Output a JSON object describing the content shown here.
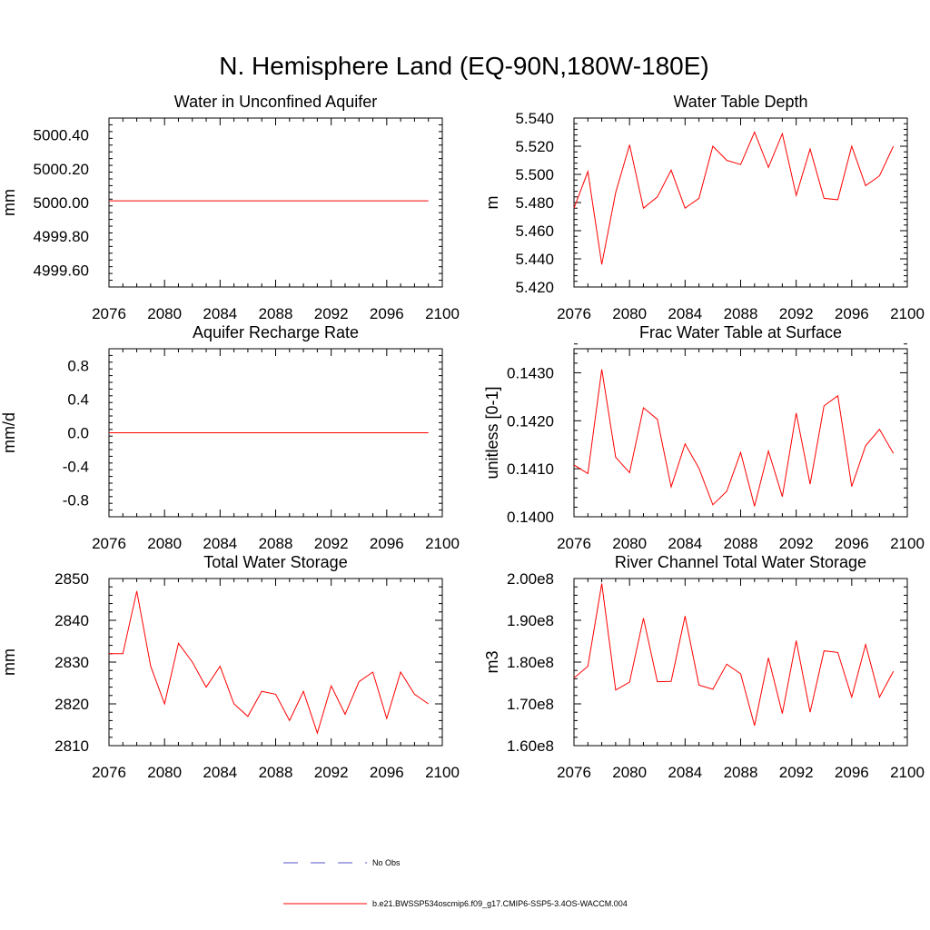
{
  "title": "N. Hemisphere Land (EQ-90N,180W-180E)",
  "colors": {
    "series": "#ff0000",
    "obs": "#5555cc",
    "axis": "#000000"
  },
  "legend": {
    "obs_label": "No Obs",
    "model_label": "b.e21.BWSSP534oscmip6.f09_g17.CMIP6-SSP5-3.4OS-WACCM.004"
  },
  "chart_data": [
    {
      "type": "line",
      "title": "Water in Unconfined Aquifer",
      "ylabel": "mm",
      "xlim": [
        2076,
        2100
      ],
      "ylim": [
        4999.5,
        5000.5
      ],
      "xticks": [
        2076,
        2080,
        2084,
        2088,
        2092,
        2096,
        2100
      ],
      "xtick_labels": [
        "2076",
        "2080",
        "2084",
        "2088",
        "2092",
        "2096",
        "2100"
      ],
      "yticks": [
        4999.6,
        4999.8,
        5000.0,
        5000.2,
        5000.4
      ],
      "ytick_labels": [
        "4999.60",
        "4999.80",
        "5000.00",
        "5000.20",
        "5000.40"
      ],
      "x": [
        2076,
        2077,
        2078,
        2079,
        2080,
        2081,
        2082,
        2083,
        2084,
        2085,
        2086,
        2087,
        2088,
        2089,
        2090,
        2091,
        2092,
        2093,
        2094,
        2095,
        2096,
        2097,
        2098,
        2099
      ],
      "values": [
        5000.01,
        5000.01,
        5000.01,
        5000.01,
        5000.01,
        5000.01,
        5000.01,
        5000.01,
        5000.01,
        5000.01,
        5000.01,
        5000.01,
        5000.01,
        5000.01,
        5000.01,
        5000.01,
        5000.01,
        5000.01,
        5000.01,
        5000.01,
        5000.01,
        5000.01,
        5000.01,
        5000.01
      ]
    },
    {
      "type": "line",
      "title": "Water Table Depth",
      "ylabel": "m",
      "xlim": [
        2076,
        2100
      ],
      "ylim": [
        5.42,
        5.54
      ],
      "xticks": [
        2076,
        2080,
        2084,
        2088,
        2092,
        2096,
        2100
      ],
      "xtick_labels": [
        "2076",
        "2080",
        "2084",
        "2088",
        "2092",
        "2096",
        "2100"
      ],
      "yticks": [
        5.42,
        5.44,
        5.46,
        5.48,
        5.5,
        5.52,
        5.54
      ],
      "ytick_labels": [
        "5.420",
        "5.440",
        "5.460",
        "5.480",
        "5.500",
        "5.520",
        "5.540"
      ],
      "x": [
        2076,
        2077,
        2078,
        2079,
        2080,
        2081,
        2082,
        2083,
        2084,
        2085,
        2086,
        2087,
        2088,
        2089,
        2090,
        2091,
        2092,
        2093,
        2094,
        2095,
        2096,
        2097,
        2098,
        2099
      ],
      "values": [
        5.476,
        5.502,
        5.436,
        5.487,
        5.521,
        5.476,
        5.484,
        5.503,
        5.476,
        5.483,
        5.52,
        5.51,
        5.507,
        5.53,
        5.505,
        5.529,
        5.485,
        5.518,
        5.483,
        5.482,
        5.52,
        5.492,
        5.499,
        5.52
      ]
    },
    {
      "type": "line",
      "title": "Aquifer Recharge Rate",
      "ylabel": "mm/d",
      "xlim": [
        2076,
        2100
      ],
      "ylim": [
        -1.0,
        1.0
      ],
      "xticks": [
        2076,
        2080,
        2084,
        2088,
        2092,
        2096,
        2100
      ],
      "xtick_labels": [
        "2076",
        "2080",
        "2084",
        "2088",
        "2092",
        "2096",
        "2100"
      ],
      "yticks": [
        -0.8,
        -0.4,
        0.0,
        0.4,
        0.8
      ],
      "ytick_labels": [
        "-0.8",
        "-0.4",
        "0.0",
        "0.4",
        "0.8"
      ],
      "x": [
        2076,
        2077,
        2078,
        2079,
        2080,
        2081,
        2082,
        2083,
        2084,
        2085,
        2086,
        2087,
        2088,
        2089,
        2090,
        2091,
        2092,
        2093,
        2094,
        2095,
        2096,
        2097,
        2098,
        2099
      ],
      "values": [
        0,
        0,
        0,
        0,
        0,
        0,
        0,
        0,
        0,
        0,
        0,
        0,
        0,
        0,
        0,
        0,
        0,
        0,
        0,
        0,
        0,
        0,
        0,
        0
      ]
    },
    {
      "type": "line",
      "title": "Frac Water Table at Surface",
      "ylabel": "unitless [0-1]",
      "xlim": [
        2076,
        2100
      ],
      "ylim": [
        0.14,
        0.1435
      ],
      "xticks": [
        2076,
        2080,
        2084,
        2088,
        2092,
        2096,
        2100
      ],
      "xtick_labels": [
        "2076",
        "2080",
        "2084",
        "2088",
        "2092",
        "2096",
        "2100"
      ],
      "yticks": [
        0.14,
        0.141,
        0.142,
        0.143
      ],
      "ytick_labels": [
        "0.1400",
        "0.1410",
        "0.1420",
        "0.1430"
      ],
      "x": [
        2076,
        2077,
        2078,
        2079,
        2080,
        2081,
        2082,
        2083,
        2084,
        2085,
        2086,
        2087,
        2088,
        2089,
        2090,
        2091,
        2092,
        2093,
        2094,
        2095,
        2096,
        2097,
        2098,
        2099
      ],
      "values": [
        0.14108,
        0.1409,
        0.14307,
        0.14124,
        0.14092,
        0.14227,
        0.14203,
        0.14062,
        0.14152,
        0.14101,
        0.14025,
        0.14053,
        0.14134,
        0.14022,
        0.14137,
        0.14042,
        0.14216,
        0.14068,
        0.14231,
        0.14252,
        0.14063,
        0.14148,
        0.14182,
        0.14132
      ]
    },
    {
      "type": "line",
      "title": "Total Water Storage",
      "ylabel": "mm",
      "xlim": [
        2076,
        2100
      ],
      "ylim": [
        2810,
        2850
      ],
      "xticks": [
        2076,
        2080,
        2084,
        2088,
        2092,
        2096,
        2100
      ],
      "xtick_labels": [
        "2076",
        "2080",
        "2084",
        "2088",
        "2092",
        "2096",
        "2100"
      ],
      "yticks": [
        2810,
        2820,
        2830,
        2840,
        2850
      ],
      "ytick_labels": [
        "2810",
        "2820",
        "2830",
        "2840",
        "2850"
      ],
      "x": [
        2076,
        2077,
        2078,
        2079,
        2080,
        2081,
        2082,
        2083,
        2084,
        2085,
        2086,
        2087,
        2088,
        2089,
        2090,
        2091,
        2092,
        2093,
        2094,
        2095,
        2096,
        2097,
        2098,
        2099
      ],
      "values": [
        2832,
        2832,
        2847,
        2829,
        2820,
        2834.5,
        2830,
        2824,
        2829,
        2820,
        2817,
        2823,
        2822.3,
        2816,
        2823,
        2813,
        2824.3,
        2817.5,
        2825.3,
        2827.6,
        2816.5,
        2827.6,
        2822.3,
        2820
      ]
    },
    {
      "type": "line",
      "title": "River Channel Total Water Storage",
      "ylabel": "m3",
      "xlim": [
        2076,
        2100
      ],
      "ylim": [
        160000000.0,
        200000000.0
      ],
      "xticks": [
        2076,
        2080,
        2084,
        2088,
        2092,
        2096,
        2100
      ],
      "xtick_labels": [
        "2076",
        "2080",
        "2084",
        "2088",
        "2092",
        "2096",
        "2100"
      ],
      "yticks": [
        160000000.0,
        170000000.0,
        180000000.0,
        190000000.0,
        200000000.0
      ],
      "ytick_labels": [
        "1.60e8",
        "1.70e8",
        "1.80e8",
        "1.90e8",
        "2.00e8"
      ],
      "x": [
        2076,
        2077,
        2078,
        2079,
        2080,
        2081,
        2082,
        2083,
        2084,
        2085,
        2086,
        2087,
        2088,
        2089,
        2090,
        2091,
        2092,
        2093,
        2094,
        2095,
        2096,
        2097,
        2098,
        2099
      ],
      "values": [
        176200000.0,
        179000000.0,
        198800000.0,
        173300000.0,
        175200000.0,
        190500000.0,
        175300000.0,
        175400000.0,
        191000000.0,
        174500000.0,
        173500000.0,
        179500000.0,
        177200000.0,
        164800000.0,
        181000000.0,
        167700000.0,
        185100000.0,
        168000000.0,
        182700000.0,
        182300000.0,
        171600000.0,
        184200000.0,
        171600000.0,
        177800000.0
      ]
    }
  ]
}
